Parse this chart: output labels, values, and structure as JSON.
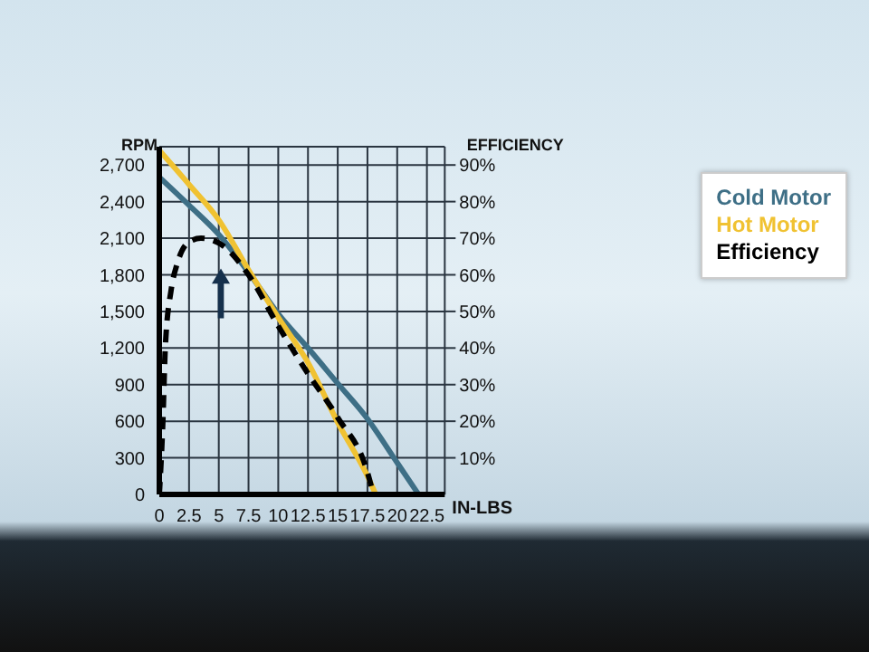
{
  "chart_data": {
    "type": "line",
    "xlabel": "IN-LBS",
    "ylabel": "RPM",
    "y2label": "EFFICIENCY",
    "xlim": [
      0,
      24
    ],
    "xticks": [
      0,
      2.5,
      5,
      7.5,
      10,
      12.5,
      15,
      17.5,
      20,
      22.5
    ],
    "ylim": [
      0,
      2850
    ],
    "yticks": [
      0,
      300,
      600,
      900,
      {
        "value": 1200,
        "label": "1,200"
      },
      {
        "value": 1500,
        "label": "1,500"
      },
      {
        "value": 1800,
        "label": "1,800"
      },
      {
        "value": 2100,
        "label": "2,100"
      },
      {
        "value": 2400,
        "label": "2,400"
      },
      {
        "value": 2700,
        "label": "2,700"
      }
    ],
    "y2lim": [
      0,
      95
    ],
    "y2ticks": [
      {
        "value": 10,
        "label": "10%"
      },
      {
        "value": 20,
        "label": "20%"
      },
      {
        "value": 30,
        "label": "30%"
      },
      {
        "value": 40,
        "label": "40%"
      },
      {
        "value": 50,
        "label": "50%"
      },
      {
        "value": 60,
        "label": "60%"
      },
      {
        "value": 70,
        "label": "70%"
      },
      {
        "value": 80,
        "label": "80%"
      },
      {
        "value": 90,
        "label": "90%"
      }
    ],
    "grid": true,
    "legend": "right",
    "marker": "none",
    "series": [
      {
        "name": "Cold Motor",
        "color": "#3e6f86",
        "x": [
          0,
          2.5,
          5,
          7.5,
          10,
          12.5,
          15,
          17.5,
          20,
          21.8
        ],
        "values": [
          2600,
          2370,
          2130,
          1820,
          1480,
          1200,
          910,
          620,
          260,
          0
        ]
      },
      {
        "name": "Hot Motor",
        "color": "#f0c232",
        "x": [
          0,
          2.5,
          5,
          7.5,
          10,
          12.5,
          15,
          17.5,
          18.2
        ],
        "values": [
          2820,
          2540,
          2250,
          1840,
          1450,
          1080,
          590,
          150,
          0
        ]
      },
      {
        "name": "Efficiency",
        "color": "#000000",
        "axis": "y2",
        "line_style": "dashed",
        "x": [
          0,
          0.3,
          0.5,
          1,
          1.5,
          2.5,
          3.5,
          5,
          7.5,
          10,
          12.5,
          15,
          17.5,
          18
        ],
        "values": [
          0,
          20,
          40,
          56,
          63,
          69,
          70,
          68.7,
          60,
          46,
          33,
          21,
          6,
          0
        ]
      }
    ]
  }
}
